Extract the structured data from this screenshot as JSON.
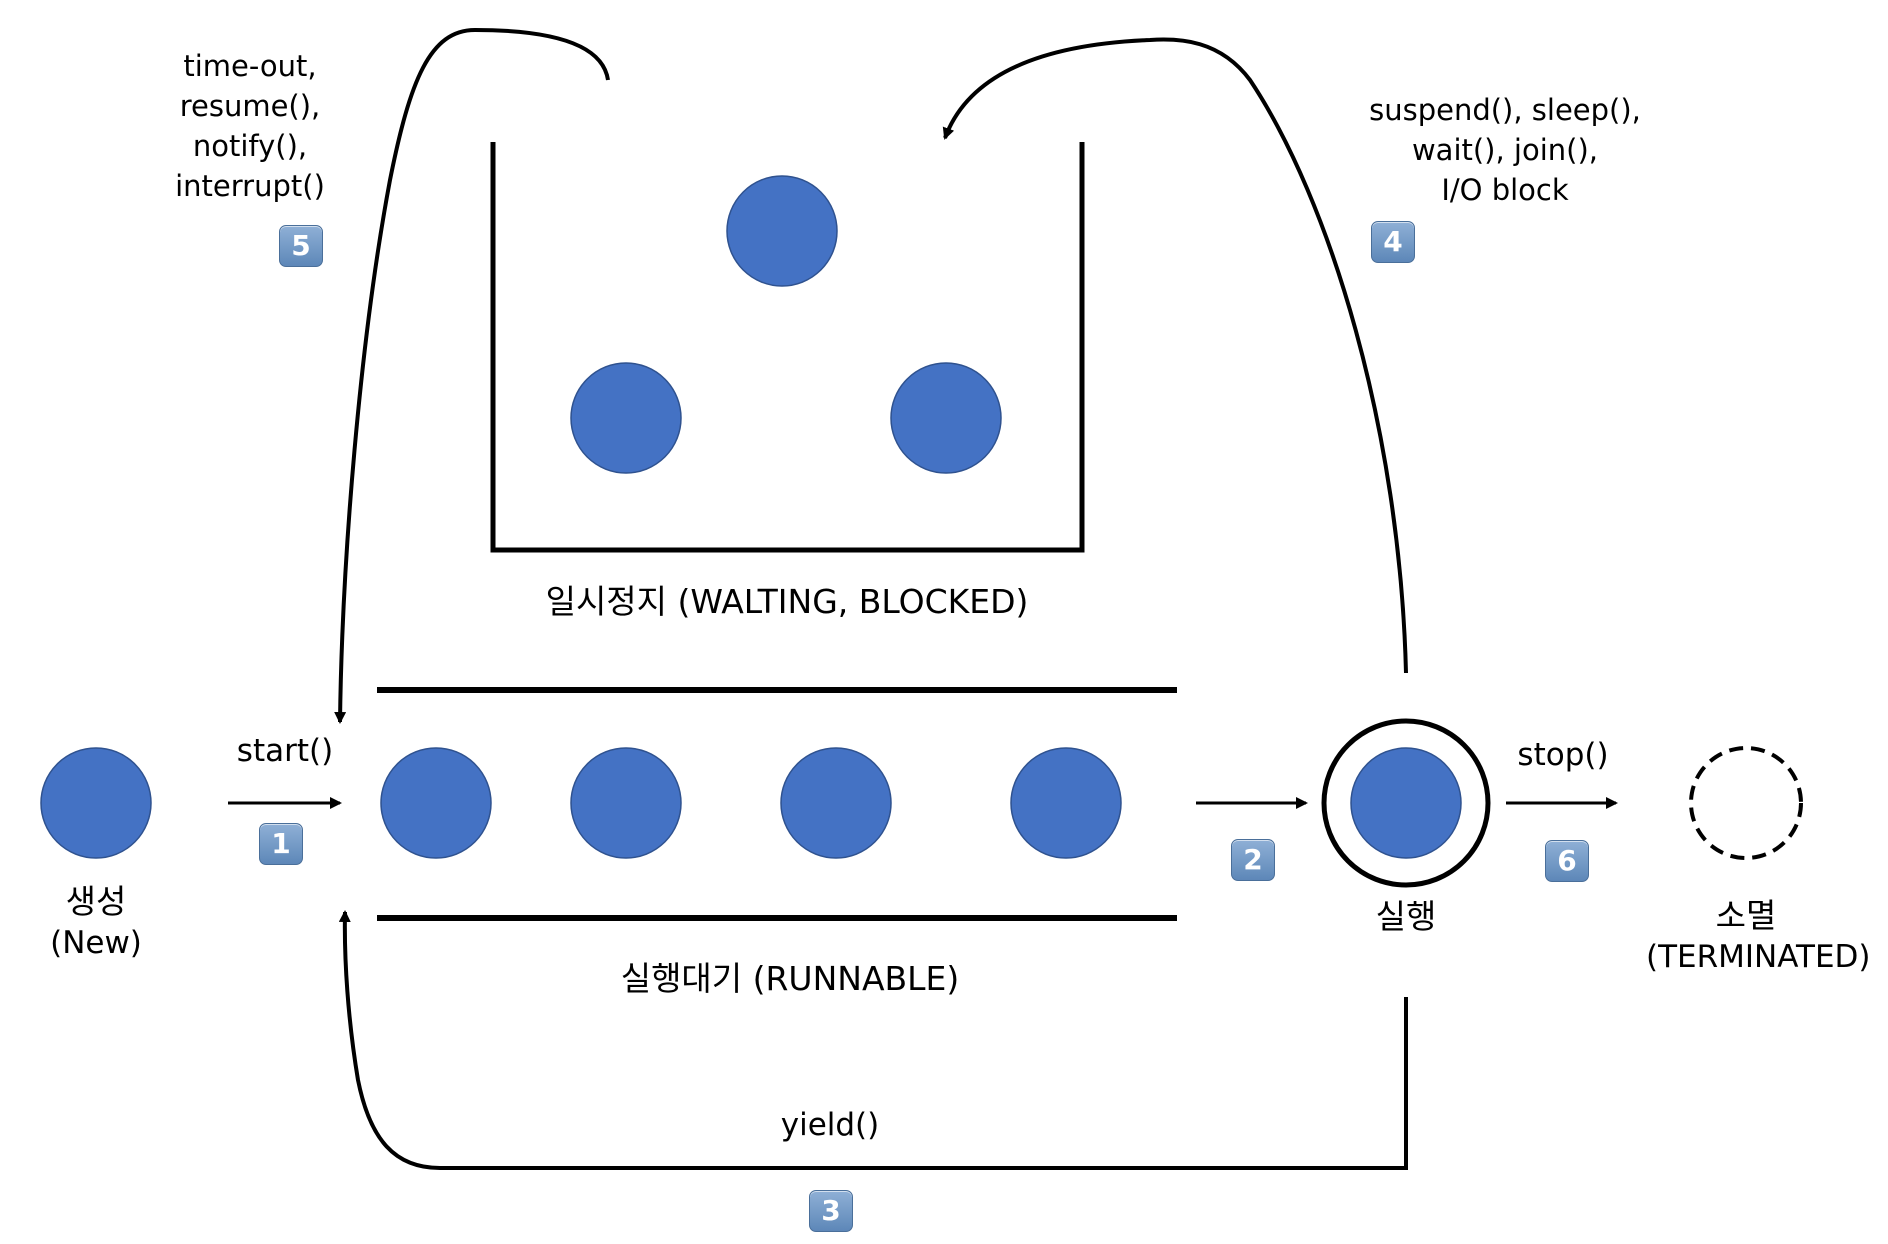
{
  "colors": {
    "thread": "#4472C4",
    "thread_stroke": "#2F528F",
    "line": "#000000",
    "badge": "#6B93C2"
  },
  "states": {
    "new": {
      "label_ko": "생성",
      "label_en": "(New)"
    },
    "runnable": {
      "label": "실행대기 (RUNNABLE)"
    },
    "waiting": {
      "label": "일시정지 (WALTING, BLOCKED)"
    },
    "running": {
      "label": "실행"
    },
    "terminated": {
      "label_ko": "소멸",
      "label_en": "(TERMINATED)"
    }
  },
  "transitions": {
    "t1": {
      "label": "start()",
      "badge": "1"
    },
    "t2": {
      "badge": "2"
    },
    "t3": {
      "label": "yield()",
      "badge": "3"
    },
    "t4": {
      "lines": [
        "suspend(), sleep(),",
        "wait(), join(),",
        "I/O block"
      ],
      "badge": "4"
    },
    "t5": {
      "lines": [
        "time-out,",
        "resume(),",
        "notify(),",
        "interrupt()"
      ],
      "badge": "5"
    },
    "t6": {
      "label": "stop()",
      "badge": "6"
    }
  }
}
